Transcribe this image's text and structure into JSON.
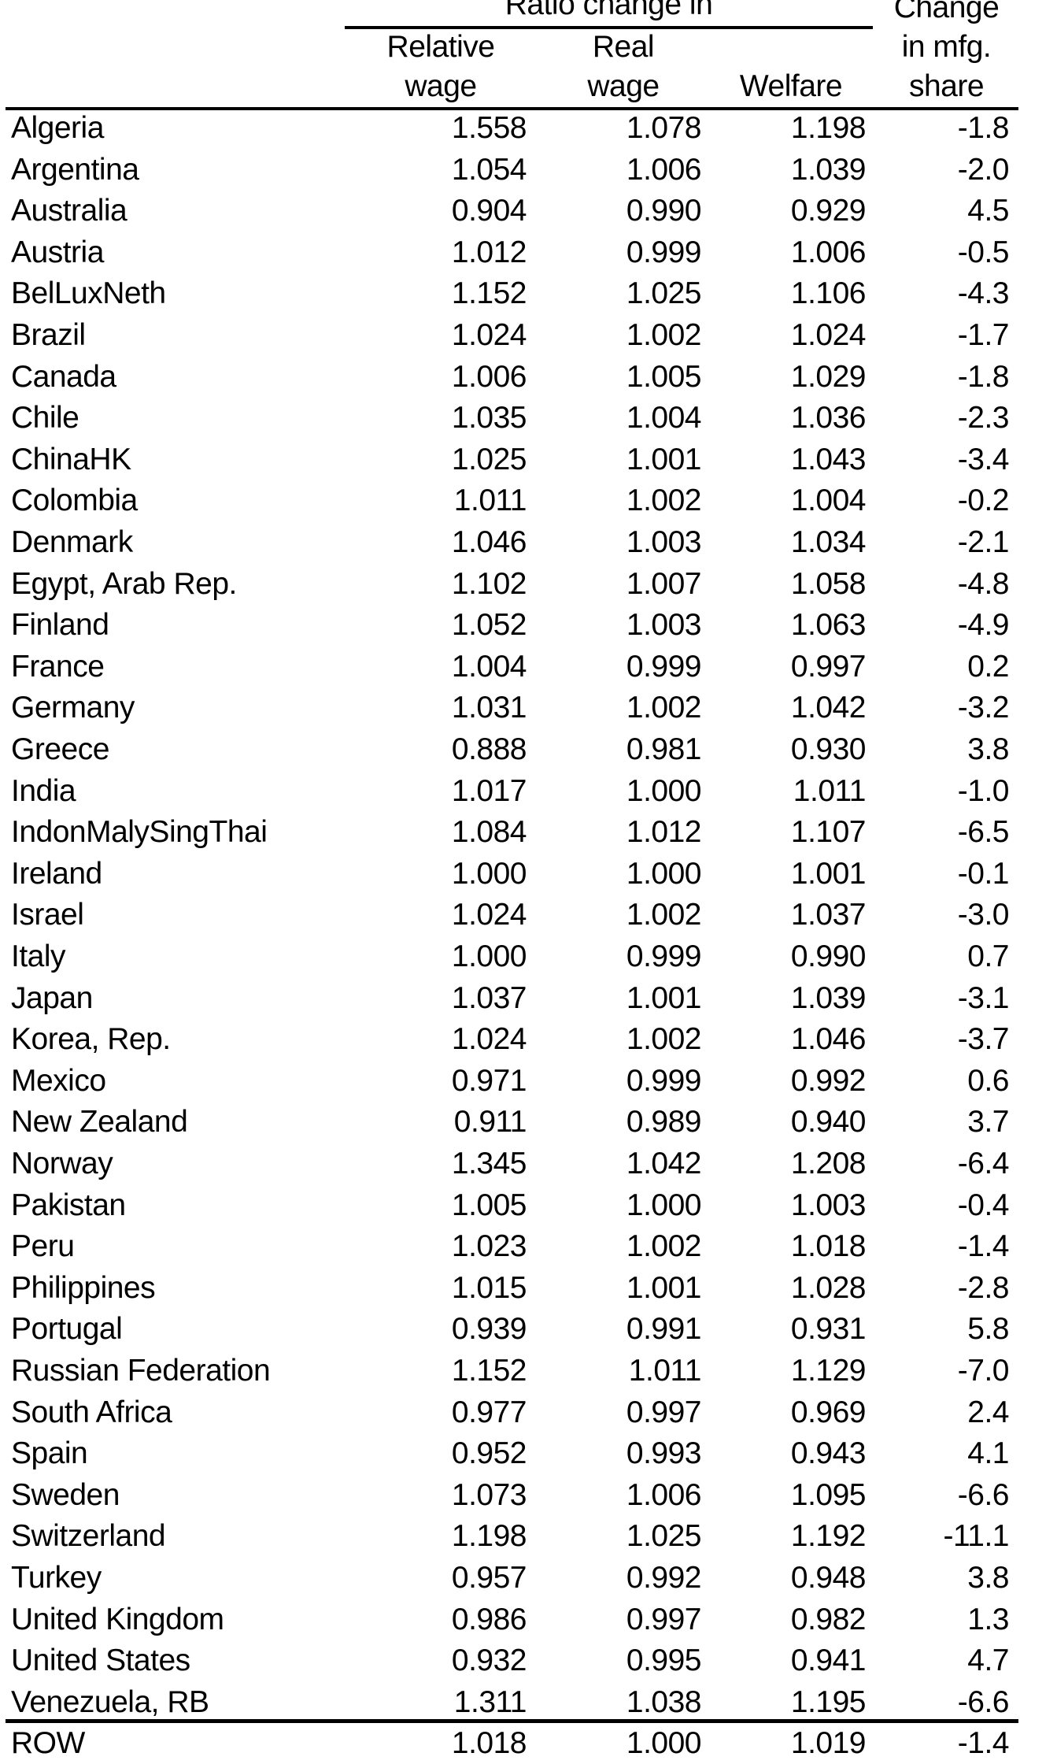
{
  "header": {
    "group_label": "Ratio change in",
    "col_relative_wage": [
      "Relative",
      "wage"
    ],
    "col_real_wage": [
      "Real",
      "wage"
    ],
    "col_welfare": "Welfare",
    "col_mfg_share": [
      "Change",
      "in mfg.",
      "share"
    ]
  },
  "rows": [
    [
      "Algeria",
      "1.558",
      "1.078",
      "1.198",
      "-1.8"
    ],
    [
      "Argentina",
      "1.054",
      "1.006",
      "1.039",
      "-2.0"
    ],
    [
      "Australia",
      "0.904",
      "0.990",
      "0.929",
      "4.5"
    ],
    [
      "Austria",
      "1.012",
      "0.999",
      "1.006",
      "-0.5"
    ],
    [
      "BelLuxNeth",
      "1.152",
      "1.025",
      "1.106",
      "-4.3"
    ],
    [
      "Brazil",
      "1.024",
      "1.002",
      "1.024",
      "-1.7"
    ],
    [
      "Canada",
      "1.006",
      "1.005",
      "1.029",
      "-1.8"
    ],
    [
      "Chile",
      "1.035",
      "1.004",
      "1.036",
      "-2.3"
    ],
    [
      "ChinaHK",
      "1.025",
      "1.001",
      "1.043",
      "-3.4"
    ],
    [
      "Colombia",
      "1.011",
      "1.002",
      "1.004",
      "-0.2"
    ],
    [
      "Denmark",
      "1.046",
      "1.003",
      "1.034",
      "-2.1"
    ],
    [
      "Egypt, Arab Rep.",
      "1.102",
      "1.007",
      "1.058",
      "-4.8"
    ],
    [
      "Finland",
      "1.052",
      "1.003",
      "1.063",
      "-4.9"
    ],
    [
      "France",
      "1.004",
      "0.999",
      "0.997",
      "0.2"
    ],
    [
      "Germany",
      "1.031",
      "1.002",
      "1.042",
      "-3.2"
    ],
    [
      "Greece",
      "0.888",
      "0.981",
      "0.930",
      "3.8"
    ],
    [
      "India",
      "1.017",
      "1.000",
      "1.011",
      "-1.0"
    ],
    [
      "IndonMalySingThai",
      "1.084",
      "1.012",
      "1.107",
      "-6.5"
    ],
    [
      "Ireland",
      "1.000",
      "1.000",
      "1.001",
      "-0.1"
    ],
    [
      "Israel",
      "1.024",
      "1.002",
      "1.037",
      "-3.0"
    ],
    [
      "Italy",
      "1.000",
      "0.999",
      "0.990",
      "0.7"
    ],
    [
      "Japan",
      "1.037",
      "1.001",
      "1.039",
      "-3.1"
    ],
    [
      "Korea, Rep.",
      "1.024",
      "1.002",
      "1.046",
      "-3.7"
    ],
    [
      "Mexico",
      "0.971",
      "0.999",
      "0.992",
      "0.6"
    ],
    [
      "New Zealand",
      "0.911",
      "0.989",
      "0.940",
      "3.7"
    ],
    [
      "Norway",
      "1.345",
      "1.042",
      "1.208",
      "-6.4"
    ],
    [
      "Pakistan",
      "1.005",
      "1.000",
      "1.003",
      "-0.4"
    ],
    [
      "Peru",
      "1.023",
      "1.002",
      "1.018",
      "-1.4"
    ],
    [
      "Philippines",
      "1.015",
      "1.001",
      "1.028",
      "-2.8"
    ],
    [
      "Portugal",
      "0.939",
      "0.991",
      "0.931",
      "5.8"
    ],
    [
      "Russian Federation",
      "1.152",
      "1.011",
      "1.129",
      "-7.0"
    ],
    [
      "South Africa",
      "0.977",
      "0.997",
      "0.969",
      "2.4"
    ],
    [
      "Spain",
      "0.952",
      "0.993",
      "0.943",
      "4.1"
    ],
    [
      "Sweden",
      "1.073",
      "1.006",
      "1.095",
      "-6.6"
    ],
    [
      "Switzerland",
      "1.198",
      "1.025",
      "1.192",
      "-11.1"
    ],
    [
      "Turkey",
      "0.957",
      "0.992",
      "0.948",
      "3.8"
    ],
    [
      "United Kingdom",
      "0.986",
      "0.997",
      "0.982",
      "1.3"
    ],
    [
      "United States",
      "0.932",
      "0.995",
      "0.941",
      "4.7"
    ],
    [
      "Venezuela, RB",
      "1.311",
      "1.038",
      "1.195",
      "-6.6"
    ],
    [
      "ROW",
      "1.018",
      "1.000",
      "1.019",
      "-1.4"
    ]
  ]
}
